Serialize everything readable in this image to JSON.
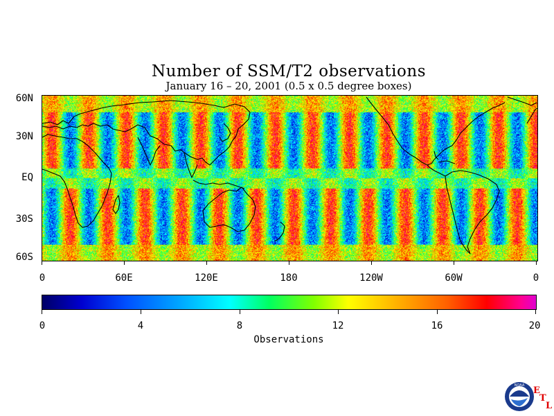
{
  "title": "Number of SSM/T2 observations",
  "subtitle": "January 16 – 20, 2001 (0.5 x 0.5 degree boxes)",
  "lat_labels": [
    "60N",
    "30N",
    "EQ",
    "30S",
    "60S"
  ],
  "lon_labels": [
    "0",
    "60E",
    "120E",
    "180",
    "120W",
    "60W",
    "0"
  ],
  "colorbar": {
    "ticks": [
      "0",
      "4",
      "8",
      "12",
      "16",
      "20"
    ],
    "label": "Observations",
    "range": [
      0,
      20
    ],
    "colors": [
      "#000066",
      "#0000d0",
      "#0050ff",
      "#00a8ff",
      "#00ffff",
      "#00ff60",
      "#80ff00",
      "#ffff00",
      "#ffb000",
      "#ff6000",
      "#ff0000",
      "#ff0090",
      "#e000d0"
    ]
  },
  "logo": {
    "noaa_text": "NOAA",
    "etl_letters": [
      "E",
      "T",
      "L"
    ]
  },
  "map": {
    "projection": "cylindrical",
    "lon_range": [
      0,
      360
    ],
    "lat_range": [
      -60,
      60
    ],
    "colormap": "rainbow",
    "field": "swath banding pattern of observation counts"
  }
}
